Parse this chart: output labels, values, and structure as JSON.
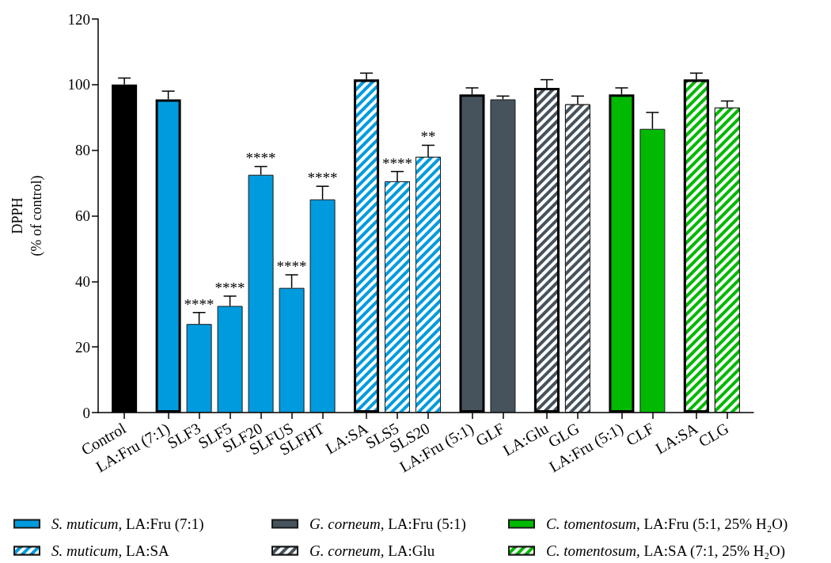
{
  "chart_data": {
    "type": "bar",
    "ylabel": "DPPH\n(% of control)",
    "categories": [
      "Control",
      "LA:Fru (7:1)",
      "SLF3",
      "SLF5",
      "SLF20",
      "SLFUS",
      "SLFHT",
      "LA:SA",
      "SLS5",
      "SLS20",
      "LA:Fru (5:1)",
      "GLF",
      "LA:Glu",
      "GLG",
      "LA:Fru (5:1)",
      "CLF",
      "LA:SA",
      "CLG"
    ],
    "series": [
      {
        "color": "#000000",
        "values": [
          100,
          null,
          null,
          null,
          null,
          null,
          null,
          null,
          null,
          null,
          null,
          null,
          null,
          null,
          null,
          null,
          null,
          null
        ],
        "errors": [
          [
            100,
            102
          ],
          null,
          null,
          null,
          null,
          null,
          null,
          null,
          null,
          null,
          null,
          null,
          null,
          null,
          null,
          null,
          null,
          null
        ]
      },
      {
        "name": "S. muticum, LA:Fru (7:1)",
        "color": "#009bde",
        "values": [
          null,
          95.5,
          27,
          32.5,
          72.5,
          38,
          65,
          null,
          null,
          null,
          null,
          null,
          null,
          null,
          null,
          null,
          null,
          null
        ],
        "errors": [
          null,
          [
            95.5,
            98
          ],
          [
            27,
            30.5
          ],
          [
            32.5,
            35.5
          ],
          [
            72.5,
            75
          ],
          [
            38,
            42
          ],
          [
            65,
            69
          ],
          null,
          null,
          null,
          null,
          null,
          null,
          null,
          null,
          null,
          null,
          null
        ]
      },
      {
        "name": "S. muticum, LA:SA",
        "color": "#009bde",
        "values": [
          null,
          null,
          null,
          null,
          null,
          null,
          null,
          101.5,
          70.5,
          78,
          null,
          null,
          null,
          null,
          null,
          null,
          null,
          null
        ],
        "errors": [
          null,
          null,
          null,
          null,
          null,
          null,
          null,
          [
            101.5,
            103.5
          ],
          [
            70.5,
            73.5
          ],
          [
            78,
            81.5
          ],
          null,
          null,
          null,
          null,
          null,
          null,
          null,
          null
        ]
      },
      {
        "name": "G. corneum, LA:Fru (5:1)",
        "color": "#46525c",
        "values": [
          null,
          null,
          null,
          null,
          null,
          null,
          null,
          null,
          null,
          null,
          97,
          95.5,
          null,
          null,
          null,
          null,
          null,
          null
        ],
        "errors": [
          null,
          null,
          null,
          null,
          null,
          null,
          null,
          null,
          null,
          null,
          [
            97,
            99
          ],
          [
            95.5,
            96.5
          ],
          null,
          null,
          null,
          null,
          null,
          null
        ]
      },
      {
        "name": "G. corneum, LA:Glu",
        "color": "#46525c",
        "values": [
          null,
          null,
          null,
          null,
          null,
          null,
          null,
          null,
          null,
          null,
          null,
          null,
          99,
          94,
          null,
          null,
          null,
          null
        ],
        "errors": [
          null,
          null,
          null,
          null,
          null,
          null,
          null,
          null,
          null,
          null,
          null,
          null,
          [
            99,
            101.5
          ],
          [
            94,
            96.5
          ],
          null,
          null,
          null,
          null
        ]
      },
      {
        "name": "C. tomentosum, LA:Fru (5:1, 25% H₂O)",
        "color": "#00b900",
        "values": [
          null,
          null,
          null,
          null,
          null,
          null,
          null,
          null,
          null,
          null,
          null,
          null,
          null,
          null,
          97,
          86.5,
          null,
          null
        ],
        "errors": [
          null,
          null,
          null,
          null,
          null,
          null,
          null,
          null,
          null,
          null,
          null,
          null,
          null,
          null,
          [
            97,
            99
          ],
          [
            86.5,
            91.5
          ],
          null,
          null
        ]
      },
      {
        "name": "C. tomentosum, LA:SA (7:1, 25% H₂O)",
        "color": "#00b900",
        "values": [
          null,
          null,
          null,
          null,
          null,
          null,
          null,
          null,
          null,
          null,
          null,
          null,
          null,
          null,
          null,
          null,
          101.5,
          93
        ],
        "errors": [
          null,
          null,
          null,
          null,
          null,
          null,
          null,
          null,
          null,
          null,
          null,
          null,
          null,
          null,
          null,
          null,
          [
            101.5,
            103.5
          ],
          [
            93,
            95
          ]
        ]
      }
    ],
    "annotations": [
      {
        "text": "****",
        "x": "SLF3",
        "y": 30.5
      },
      {
        "text": "****",
        "x": "SLF5",
        "y": 35.5
      },
      {
        "text": "****",
        "x": "SLF20",
        "y": 75
      },
      {
        "text": "****",
        "x": "SLFUS",
        "y": 42
      },
      {
        "text": "****",
        "x": "SLFHT",
        "y": 69
      },
      {
        "text": "****",
        "x": "SLS5",
        "y": 73.5
      },
      {
        "text": "**",
        "x": "SLS20",
        "y": 81.5
      }
    ],
    "ylim": [
      0,
      120
    ],
    "yticks": [
      0,
      20,
      40,
      60,
      80,
      100,
      120
    ],
    "legend": "bottom"
  }
}
